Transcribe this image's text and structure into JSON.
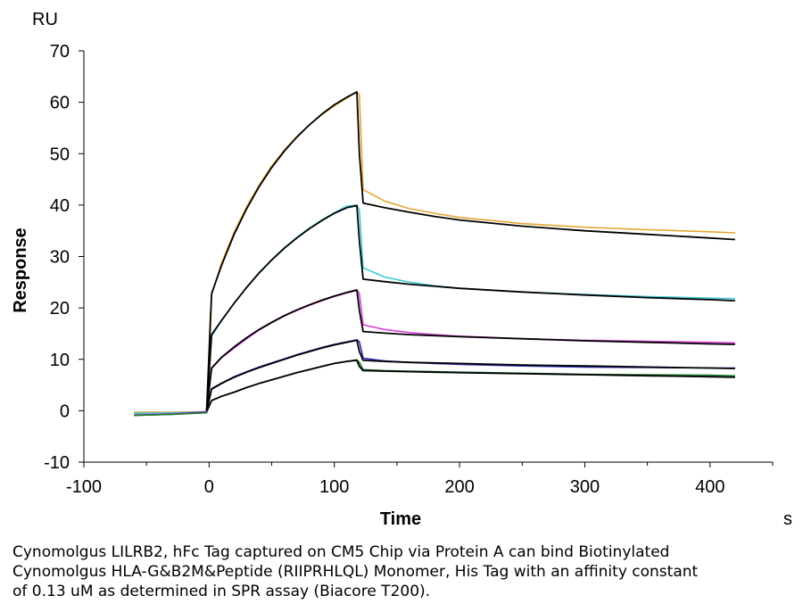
{
  "chart_data": {
    "type": "line",
    "title": "",
    "xlabel": "Time",
    "ylabel": "Response",
    "x_unit": "s",
    "y_unit": "RU",
    "xlim": [
      -100,
      450
    ],
    "ylim": [
      -10,
      70
    ],
    "x_ticks": [
      -100,
      0,
      100,
      200,
      300,
      400
    ],
    "y_ticks": [
      -10,
      0,
      10,
      20,
      30,
      40,
      50,
      60,
      70
    ],
    "grid": false,
    "legend": "none",
    "series": [
      {
        "role": "sensorgram",
        "color": "#e3a534",
        "x": [
          -60,
          -30,
          -2,
          1,
          2,
          10,
          20,
          30,
          40,
          50,
          60,
          70,
          80,
          90,
          100,
          110,
          118,
          120,
          123,
          140,
          160,
          180,
          200,
          250,
          300,
          350,
          400,
          420
        ],
        "y": [
          -0.3,
          -0.3,
          -0.2,
          19,
          22.5,
          28.8,
          34.7,
          39.7,
          43.9,
          47.6,
          50.7,
          53.3,
          55.6,
          57.6,
          59.3,
          60.8,
          62,
          61.5,
          43,
          40.8,
          39.3,
          38.4,
          37.6,
          36.4,
          35.7,
          35.2,
          34.8,
          34.6
        ]
      },
      {
        "role": "sensorgram",
        "color": "#40c8d8",
        "x": [
          -60,
          -30,
          -2,
          1,
          2,
          10,
          20,
          30,
          40,
          50,
          60,
          70,
          80,
          90,
          100,
          110,
          118,
          120,
          123,
          140,
          160,
          180,
          200,
          250,
          300,
          350,
          400,
          420
        ],
        "y": [
          -0.5,
          -0.4,
          -0.2,
          12,
          14.5,
          17.5,
          20.9,
          24,
          26.9,
          29.4,
          31.7,
          33.7,
          35.5,
          37.1,
          38.5,
          39.8,
          40,
          39,
          27.8,
          26,
          25,
          24.3,
          23.8,
          23.1,
          22.6,
          22.2,
          21.9,
          21.8
        ]
      },
      {
        "role": "sensorgram",
        "color": "#d83fd8",
        "x": [
          -60,
          -30,
          -2,
          1,
          2,
          10,
          20,
          30,
          40,
          50,
          60,
          70,
          80,
          90,
          100,
          110,
          118,
          120,
          123,
          140,
          160,
          180,
          200,
          250,
          300,
          350,
          400,
          420
        ],
        "y": [
          -0.8,
          -0.6,
          -0.2,
          6.5,
          8.2,
          10.3,
          12.2,
          14,
          15.7,
          17.1,
          18.4,
          19.5,
          20.5,
          21.4,
          22.2,
          22.9,
          23.4,
          22.8,
          16.7,
          15.8,
          15.2,
          14.8,
          14.5,
          14,
          13.7,
          13.5,
          13.3,
          13.2
        ]
      },
      {
        "role": "sensorgram",
        "color": "#2a2ab8",
        "x": [
          -60,
          -30,
          -2,
          1,
          2,
          10,
          20,
          30,
          40,
          50,
          60,
          70,
          80,
          90,
          100,
          110,
          118,
          120,
          123,
          140,
          160,
          180,
          200,
          250,
          300,
          350,
          400,
          420
        ],
        "y": [
          -0.9,
          -0.7,
          -0.3,
          3.5,
          4.3,
          5.4,
          6.6,
          7.6,
          8.5,
          9.3,
          10.1,
          10.9,
          11.6,
          12.3,
          12.9,
          13.4,
          13.8,
          13.4,
          10.2,
          9.7,
          9.4,
          9.2,
          9,
          8.7,
          8.5,
          8.4,
          8.3,
          8.3
        ]
      },
      {
        "role": "sensorgram",
        "color": "#1f7a2a",
        "x": [
          -60,
          -30,
          -2,
          1,
          2,
          10,
          20,
          30,
          40,
          50,
          60,
          70,
          80,
          90,
          100,
          110,
          118,
          120,
          123,
          140,
          160,
          180,
          200,
          250,
          300,
          350,
          400,
          420
        ],
        "y": [
          -0.9,
          -0.7,
          -0.4,
          1.4,
          2,
          2.8,
          3.6,
          4.5,
          5.3,
          6,
          6.7,
          7.4,
          8,
          8.6,
          9.2,
          9.6,
          9.9,
          9.4,
          8,
          7.8,
          7.7,
          7.6,
          7.5,
          7.3,
          7.1,
          7,
          6.9,
          6.8
        ]
      },
      {
        "role": "fit",
        "color": "#000000",
        "x": [
          -2,
          2,
          10,
          20,
          30,
          40,
          50,
          60,
          70,
          80,
          90,
          100,
          110,
          118,
          120,
          123,
          140,
          160,
          180,
          200,
          250,
          300,
          350,
          400,
          420
        ],
        "y": [
          0,
          22.8,
          28.3,
          34.3,
          39.3,
          43.6,
          47.3,
          50.5,
          53.2,
          55.6,
          57.7,
          59.5,
          61,
          62,
          50,
          40.4,
          39.5,
          38.6,
          37.8,
          37.1,
          35.9,
          35,
          34.3,
          33.6,
          33.3
        ]
      },
      {
        "role": "fit",
        "color": "#000000",
        "x": [
          -2,
          2,
          10,
          20,
          30,
          40,
          50,
          60,
          70,
          80,
          90,
          100,
          110,
          118,
          120,
          123,
          140,
          160,
          180,
          200,
          250,
          300,
          350,
          400,
          420
        ],
        "y": [
          0,
          14.8,
          17.6,
          20.9,
          24,
          26.8,
          29.3,
          31.6,
          33.6,
          35.4,
          37,
          38.4,
          39.5,
          39.9,
          33,
          25.6,
          25.1,
          24.6,
          24.2,
          23.8,
          23.1,
          22.5,
          22,
          21.6,
          21.4
        ]
      },
      {
        "role": "fit",
        "color": "#000000",
        "x": [
          -2,
          2,
          10,
          20,
          30,
          40,
          50,
          60,
          70,
          80,
          90,
          100,
          110,
          118,
          120,
          123,
          140,
          160,
          180,
          200,
          250,
          300,
          350,
          400,
          420
        ],
        "y": [
          0,
          8.3,
          10.4,
          12.4,
          14.2,
          15.8,
          17.2,
          18.5,
          19.6,
          20.6,
          21.5,
          22.3,
          23,
          23.5,
          19.5,
          15.4,
          15.1,
          14.8,
          14.6,
          14.4,
          14,
          13.6,
          13.3,
          13,
          12.9
        ]
      },
      {
        "role": "fit",
        "color": "#000000",
        "x": [
          -2,
          2,
          10,
          20,
          30,
          40,
          50,
          60,
          70,
          80,
          90,
          100,
          110,
          118,
          120,
          123,
          140,
          160,
          180,
          200,
          250,
          300,
          350,
          400,
          420
        ],
        "y": [
          0,
          4.2,
          5.3,
          6.5,
          7.5,
          8.4,
          9.2,
          10,
          10.8,
          11.5,
          12.2,
          12.8,
          13.3,
          13.7,
          11.5,
          9.8,
          9.6,
          9.4,
          9.3,
          9.2,
          8.9,
          8.7,
          8.5,
          8.3,
          8.2
        ]
      },
      {
        "role": "fit",
        "color": "#000000",
        "x": [
          -2,
          2,
          10,
          20,
          30,
          40,
          50,
          60,
          70,
          80,
          90,
          100,
          110,
          118,
          120,
          123,
          140,
          160,
          180,
          200,
          250,
          300,
          350,
          400,
          420
        ],
        "y": [
          0,
          2,
          2.8,
          3.6,
          4.5,
          5.3,
          6,
          6.7,
          7.4,
          8,
          8.6,
          9.2,
          9.6,
          9.8,
          8.6,
          7.8,
          7.7,
          7.6,
          7.5,
          7.4,
          7.2,
          7,
          6.8,
          6.6,
          6.5
        ]
      }
    ]
  },
  "caption": {
    "line1": "Cynomolgus LILRB2, hFc Tag captured on CM5 Chip via Protein A can bind Biotinylated",
    "line2": "Cynomolgus HLA-G&B2M&Peptide (RIIPRHLQL) Monomer, His Tag with an affinity constant",
    "line3": "of 0.13 uM as determined in SPR assay (Biacore T200)."
  }
}
